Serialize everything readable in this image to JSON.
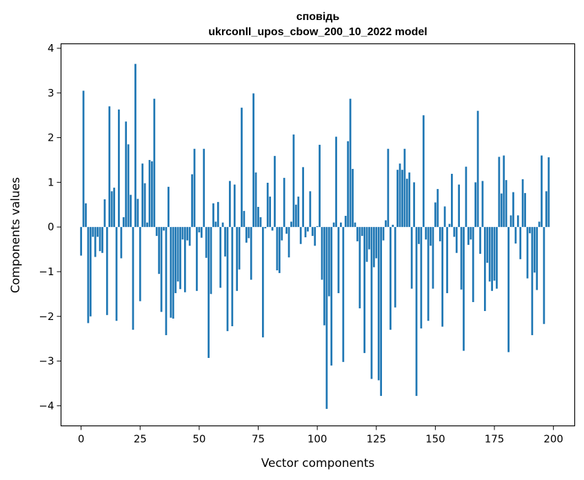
{
  "chart_data": {
    "type": "bar",
    "title_lines": [
      "сповідь",
      "ukrconll_upos_cbow_200_10_2022 model"
    ],
    "xlabel": "Vector components",
    "ylabel": "Components values",
    "xlim": [
      -8.5,
      209
    ],
    "ylim": [
      -4.45,
      4.1
    ],
    "x_ticks": [
      0,
      25,
      50,
      75,
      100,
      125,
      150,
      175,
      200
    ],
    "y_ticks": [
      -4,
      -3,
      -2,
      -1,
      0,
      1,
      2,
      3,
      4
    ],
    "x_tick_labels": [
      "0",
      "25",
      "50",
      "75",
      "100",
      "125",
      "150",
      "175",
      "200"
    ],
    "y_tick_labels": [
      "−4",
      "−3",
      "−2",
      "−1",
      "0",
      "1",
      "2",
      "3",
      "4"
    ],
    "grid": false,
    "bar_color": "#1f77b4",
    "values": [
      -0.64,
      3.05,
      0.53,
      -2.15,
      -2.0,
      -0.22,
      -0.67,
      -0.22,
      -0.54,
      -0.58,
      0.62,
      -1.97,
      2.7,
      0.8,
      0.88,
      -2.1,
      2.63,
      -0.7,
      0.22,
      2.36,
      1.85,
      0.72,
      -2.3,
      3.65,
      0.63,
      -1.66,
      1.42,
      0.98,
      0.1,
      1.5,
      1.47,
      2.87,
      -0.2,
      -1.05,
      -1.9,
      -0.08,
      -2.42,
      0.9,
      -2.03,
      -2.05,
      -1.48,
      -1.22,
      -1.39,
      -0.28,
      -1.46,
      -0.3,
      -0.42,
      1.18,
      1.75,
      -1.43,
      -0.12,
      -0.24,
      1.75,
      -0.69,
      -2.93,
      -1.5,
      0.53,
      0.12,
      0.56,
      -1.36,
      0.1,
      -0.66,
      -2.33,
      1.03,
      -2.22,
      0.95,
      -1.43,
      -0.95,
      2.67,
      0.36,
      -0.35,
      -0.25,
      -1.18,
      2.99,
      1.22,
      0.45,
      0.22,
      -2.47,
      -0.03,
      0.99,
      0.68,
      -0.08,
      1.59,
      -0.97,
      -1.03,
      -0.3,
      1.1,
      -0.15,
      -0.68,
      0.12,
      2.07,
      0.5,
      0.68,
      -0.38,
      1.34,
      -0.23,
      -0.1,
      0.8,
      -0.2,
      -0.42,
      0.02,
      1.84,
      -1.18,
      -2.2,
      -4.07,
      -1.55,
      -3.1,
      0.1,
      2.02,
      -1.48,
      0.1,
      -3.02,
      0.25,
      1.92,
      2.87,
      1.3,
      0.1,
      -0.32,
      -1.82,
      -0.2,
      -2.82,
      -0.78,
      -0.5,
      -3.4,
      -0.9,
      -0.7,
      -3.43,
      -3.78,
      -0.3,
      0.15,
      1.75,
      -2.3,
      0.05,
      -1.8,
      1.28,
      1.42,
      1.28,
      1.75,
      1.08,
      1.22,
      -1.38,
      1.0,
      -3.78,
      -0.38,
      -2.27,
      2.5,
      -0.28,
      -2.1,
      -0.42,
      -1.38,
      0.55,
      0.85,
      -0.32,
      -2.23,
      0.46,
      -1.48,
      0.07,
      1.19,
      -0.22,
      -0.58,
      0.95,
      -1.4,
      -2.77,
      1.35,
      -0.4,
      -0.28,
      -1.68,
      1.0,
      2.6,
      -0.6,
      1.03,
      -1.88,
      -0.8,
      -1.22,
      -1.43,
      -1.2,
      -1.38,
      1.57,
      0.75,
      1.6,
      1.05,
      -2.8,
      0.26,
      0.78,
      -0.37,
      0.26,
      -0.72,
      1.07,
      0.76,
      -1.15,
      -0.14,
      -2.42,
      -1.02,
      -1.41,
      0.12,
      1.6,
      -2.17,
      0.8,
      1.56
    ]
  }
}
